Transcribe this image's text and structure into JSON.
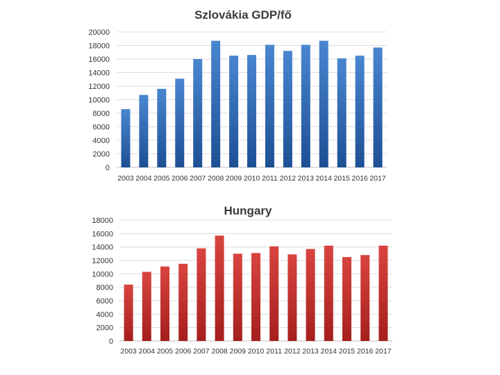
{
  "chart_data": [
    {
      "type": "bar",
      "title": "Szlovákia GDP/fő",
      "xlabel": "",
      "ylabel": "",
      "ylim": [
        0,
        20000
      ],
      "yticks": [
        0,
        2000,
        4000,
        6000,
        8000,
        10000,
        12000,
        14000,
        16000,
        18000,
        20000
      ],
      "grid": true,
      "legend": "none",
      "bar_color_top": "#4a86d0",
      "bar_color_bottom": "#1d4f94",
      "categories": [
        "2003",
        "2004",
        "2005",
        "2006",
        "2007",
        "2008",
        "2009",
        "2010",
        "2011",
        "2012",
        "2013",
        "2014",
        "2015",
        "2016",
        "2017"
      ],
      "values": [
        8600,
        10700,
        11600,
        13100,
        16000,
        18700,
        16500,
        16600,
        18100,
        17200,
        18100,
        18700,
        16100,
        16500,
        17700
      ]
    },
    {
      "type": "bar",
      "title": "Hungary",
      "xlabel": "",
      "ylabel": "",
      "ylim": [
        0,
        18000
      ],
      "yticks": [
        0,
        2000,
        4000,
        6000,
        8000,
        10000,
        12000,
        14000,
        16000,
        18000
      ],
      "grid": true,
      "legend": "none",
      "bar_color_top": "#d9443f",
      "bar_color_bottom": "#a51f1d",
      "categories": [
        "2003",
        "2004",
        "2005",
        "2006",
        "2007",
        "2008",
        "2009",
        "2010",
        "2011",
        "2012",
        "2013",
        "2014",
        "2015",
        "2016",
        "2017"
      ],
      "values": [
        8400,
        10300,
        11100,
        11500,
        13800,
        15700,
        13000,
        13100,
        14100,
        12900,
        13700,
        14200,
        12500,
        12800,
        14200
      ]
    }
  ]
}
